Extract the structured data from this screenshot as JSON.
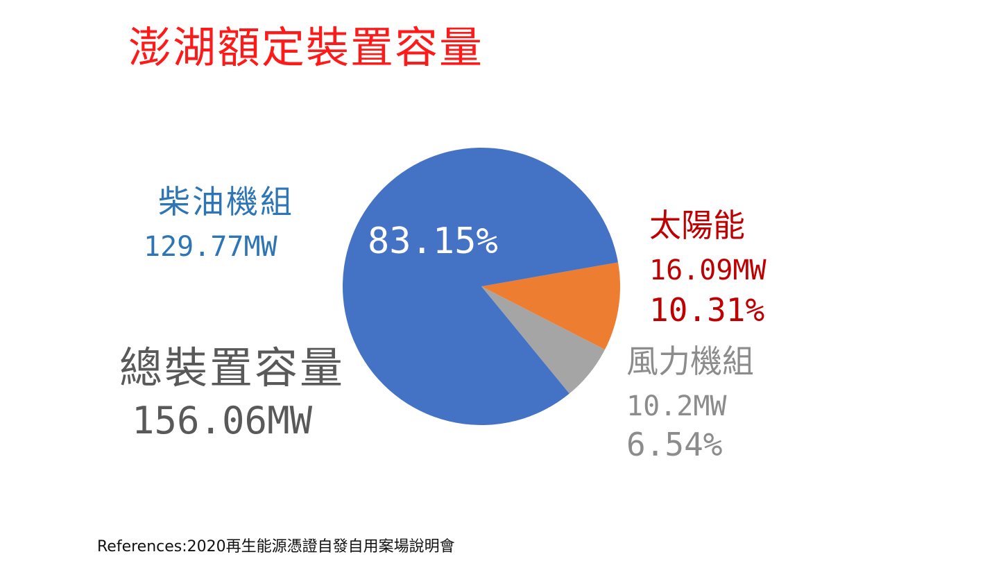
{
  "title": "澎湖額定裝置容量",
  "chart_data": {
    "type": "pie",
    "slices": [
      {
        "name": "柴油機組",
        "value_mw": 129.77,
        "value_label": "129.77MW",
        "percent": 83.15,
        "percent_label": "83.15%",
        "color": "#4472c4"
      },
      {
        "name": "太陽能",
        "value_mw": 16.09,
        "value_label": "16.09MW",
        "percent": 10.31,
        "percent_label": "10.31%",
        "color": "#ed7d31"
      },
      {
        "name": "風力機組",
        "value_mw": 10.2,
        "value_label": "10.2MW",
        "percent": 6.54,
        "percent_label": "6.54%",
        "color": "#a5a5a5"
      }
    ],
    "total": {
      "name": "總裝置容量",
      "value_label": "156.06MW",
      "value_mw": 156.06
    }
  },
  "references": "References:2020再生能源憑證自發自用案場說明會"
}
